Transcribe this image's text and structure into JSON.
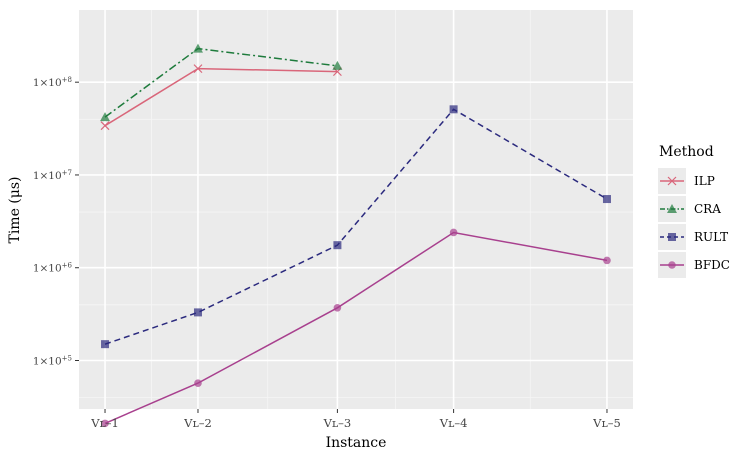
{
  "chart_data": {
    "type": "line",
    "xlabel": "Instance",
    "ylabel": "Time (μs)",
    "yscale": "log10",
    "ylim": [
      30000,
      600000000
    ],
    "categories": [
      "VL-1",
      "VL-2",
      "VL-3",
      "VL-4",
      "VL-5"
    ],
    "x_tick_labels": [
      "Vʟ–1",
      "Vʟ–2",
      "Vʟ–3",
      "Vʟ–4",
      "Vʟ–5"
    ],
    "x": [
      1,
      2,
      3.5,
      4.75,
      6.4
    ],
    "y_ticks": [
      {
        "value": 100000,
        "mantissa": "1",
        "exponent": "+5"
      },
      {
        "value": 1000000,
        "mantissa": "1",
        "exponent": "+6"
      },
      {
        "value": 10000000,
        "mantissa": "1",
        "exponent": "+7"
      },
      {
        "value": 100000000,
        "mantissa": "1",
        "exponent": "+8"
      }
    ],
    "grid": true,
    "legend_title": "Method",
    "legend_position": "right",
    "series": [
      {
        "name": "ILP",
        "color": "#d9667a",
        "marker": "x",
        "dash": "",
        "values": [
          34000000,
          140000000,
          130000000,
          null,
          null
        ]
      },
      {
        "name": "CRA",
        "color": "#1e7b3c",
        "marker": "triangle",
        "dash": "8 3 2 3",
        "values": [
          42000000,
          230000000,
          150000000,
          null,
          null
        ]
      },
      {
        "name": "RULT",
        "color": "#2b2a7e",
        "marker": "square",
        "dash": "6 4",
        "values": [
          150000,
          330000,
          1750000,
          51000000,
          5500000
        ]
      },
      {
        "name": "BFDC",
        "color": "#a8408e",
        "marker": "circle",
        "dash": "",
        "values": [
          21000,
          57000,
          370000,
          2400000,
          1200000
        ]
      }
    ]
  }
}
